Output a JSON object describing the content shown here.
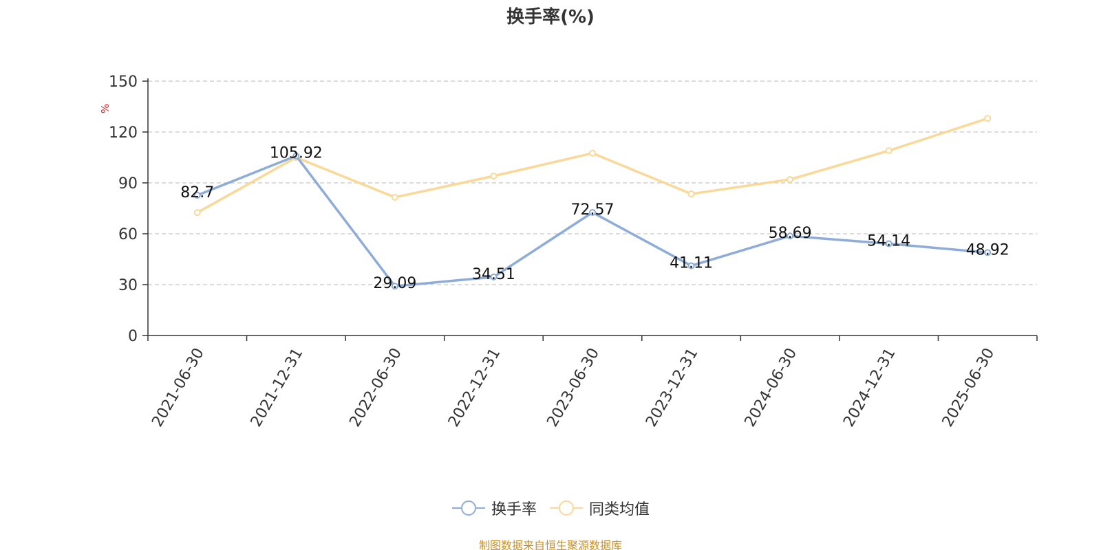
{
  "title": "换手率(%)",
  "source": "制图数据来自恒生聚源数据库",
  "colors": {
    "series1": "#8eacd8",
    "series2": "#fad898",
    "grid": "#c8c8c8",
    "axis": "#333333",
    "unit": "#e02020",
    "source": "#c8922a"
  },
  "chart_data": {
    "type": "line",
    "title": "换手率(%)",
    "xlabel": "",
    "ylabel": "%",
    "ylim": [
      0,
      150
    ],
    "yticks": [
      0,
      30,
      60,
      90,
      120,
      150
    ],
    "grid": true,
    "legend_position": "bottom",
    "categories": [
      "2021-06-30",
      "2021-12-31",
      "2022-06-30",
      "2022-12-31",
      "2023-06-30",
      "2023-12-31",
      "2024-06-30",
      "2024-12-31",
      "2025-06-30"
    ],
    "series": [
      {
        "name": "换手率",
        "color": "#8eacd8",
        "values": [
          82.7,
          105.92,
          29.09,
          34.51,
          72.57,
          41.11,
          58.69,
          54.14,
          48.92
        ],
        "labels": [
          "82.7",
          "105.92",
          "29.09",
          "34.51",
          "72.57",
          "41.11",
          "58.69",
          "54.14",
          "48.92"
        ]
      },
      {
        "name": "同类均值",
        "color": "#fad898",
        "values": [
          72.5,
          105.0,
          81.5,
          94.0,
          107.5,
          83.5,
          92.0,
          109.0,
          128.0
        ]
      }
    ]
  }
}
